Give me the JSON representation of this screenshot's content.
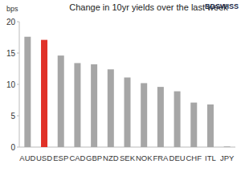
{
  "chart_data": {
    "type": "bar",
    "title": "Change in 10yr yields over the last week",
    "ylabel": "bps",
    "annotations": [
      "BDSWISS"
    ],
    "categories": [
      "AUD",
      "USD",
      "ESP",
      "CAD",
      "GBP",
      "NZD",
      "SEK",
      "NOK",
      "FRA",
      "DEU",
      "CHF",
      "ITL",
      "JPY"
    ],
    "values": [
      17.6,
      17.1,
      14.6,
      13.4,
      13.2,
      12.4,
      11.1,
      10.2,
      9.6,
      8.9,
      7.1,
      6.8,
      0.1
    ],
    "colors": [
      "#a6a6a6",
      "#e03127",
      "#a6a6a6",
      "#a6a6a6",
      "#a6a6a6",
      "#a6a6a6",
      "#a6a6a6",
      "#a6a6a6",
      "#a6a6a6",
      "#a6a6a6",
      "#a6a6a6",
      "#a6a6a6",
      "#a6a6a6"
    ],
    "ylim": [
      0,
      20
    ],
    "yticks": [
      0,
      5,
      10,
      15,
      20
    ],
    "grid": false
  }
}
